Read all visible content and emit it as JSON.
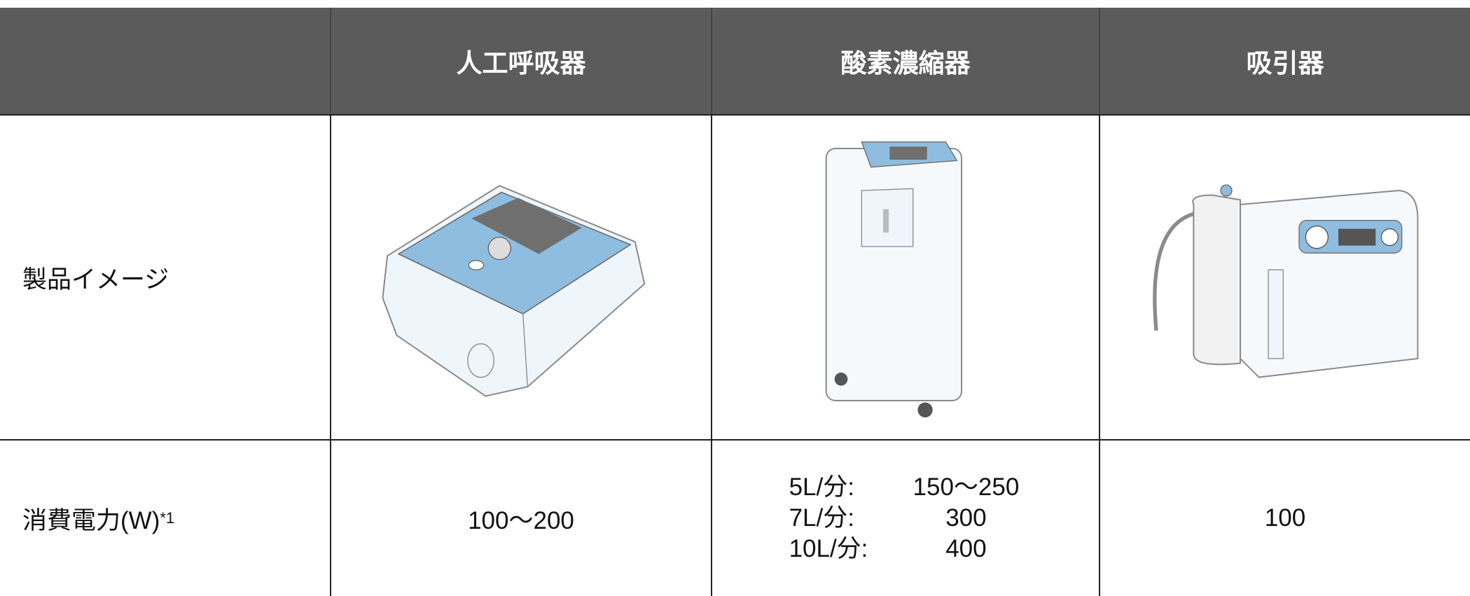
{
  "table": {
    "header": [
      "人工呼吸器",
      "酸素濃縮器",
      "吸引器"
    ],
    "rows": [
      {
        "label": "製品イメージ"
      },
      {
        "label": "消費電力(W)",
        "note": "*1",
        "cells": [
          "100〜200",
          [
            {
              "flow": "5L/分:",
              "power": "150〜250"
            },
            {
              "flow": "7L/分:",
              "power": "300"
            },
            {
              "flow": "10L/分:",
              "power": "400"
            }
          ],
          "100"
        ]
      }
    ]
  }
}
